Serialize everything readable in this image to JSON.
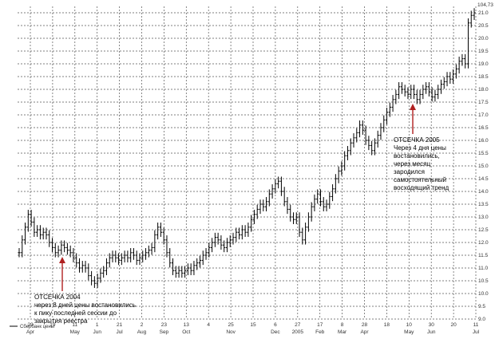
{
  "chart_data": {
    "type": "line",
    "subtype": "candlestick-style bars",
    "title": "",
    "xlabel": "",
    "ylabel": "",
    "ylim": [
      9.0,
      21.25
    ],
    "y_axis_side": "right",
    "y_ticks": [
      9.0,
      9.5,
      10.0,
      10.5,
      11.0,
      11.5,
      12.0,
      12.5,
      13.0,
      13.5,
      14.0,
      14.5,
      15.0,
      15.5,
      16.0,
      16.5,
      17.0,
      17.5,
      18.0,
      18.5,
      19.0,
      19.5,
      20.0,
      20.5,
      21.0
    ],
    "y_top_label": "104,73",
    "grid": true,
    "legend_position": "bottom-left",
    "x_tick_labels": [
      {
        "day": "29",
        "month": "Apr"
      },
      {
        "day": "19",
        "month": ""
      },
      {
        "day": "11",
        "month": "May"
      },
      {
        "day": "1",
        "month": "Jun"
      },
      {
        "day": "21",
        "month": "Jul"
      },
      {
        "day": "2",
        "month": "Aug"
      },
      {
        "day": "23",
        "month": "Sep"
      },
      {
        "day": "13",
        "month": "Oct"
      },
      {
        "day": "4",
        "month": ""
      },
      {
        "day": "25",
        "month": "Nov"
      },
      {
        "day": "15",
        "month": ""
      },
      {
        "day": "6",
        "month": "Dec"
      },
      {
        "day": "27",
        "month": "2005"
      },
      {
        "day": "17",
        "month": "Feb"
      },
      {
        "day": "8",
        "month": "Mar"
      },
      {
        "day": "28",
        "month": "Apr"
      },
      {
        "day": "18",
        "month": ""
      },
      {
        "day": "10",
        "month": "May"
      },
      {
        "day": "30",
        "month": "Jun"
      },
      {
        "day": "20",
        "month": ""
      },
      {
        "day": "11",
        "month": "Jul"
      }
    ],
    "series": [
      {
        "name": "Сбербанк цены",
        "color": "#000000",
        "close": [
          11.6,
          12.1,
          12.6,
          13.1,
          12.8,
          12.4,
          12.5,
          12.3,
          12.4,
          12.3,
          12.0,
          11.8,
          11.6,
          11.7,
          11.9,
          11.8,
          11.7,
          11.6,
          11.4,
          11.2,
          11.0,
          11.1,
          11.0,
          10.7,
          10.5,
          10.4,
          10.6,
          10.8,
          10.9,
          11.2,
          11.4,
          11.5,
          11.4,
          11.3,
          11.4,
          11.5,
          11.4,
          11.6,
          11.5,
          11.3,
          11.4,
          11.5,
          11.6,
          11.7,
          11.8,
          12.3,
          12.6,
          12.4,
          12.1,
          11.6,
          11.2,
          10.9,
          10.8,
          10.9,
          10.8,
          10.9,
          11.0,
          10.9,
          11.1,
          11.2,
          11.3,
          11.5,
          11.6,
          11.8,
          12.0,
          12.2,
          12.1,
          11.9,
          11.8,
          12.0,
          12.1,
          12.2,
          12.4,
          12.3,
          12.5,
          12.4,
          12.6,
          12.9,
          13.1,
          13.3,
          13.5,
          13.4,
          13.6,
          13.9,
          14.1,
          14.3,
          14.4,
          14.0,
          13.6,
          13.3,
          13.0,
          12.9,
          13.0,
          12.4,
          12.1,
          12.6,
          13.0,
          13.4,
          13.7,
          13.9,
          13.6,
          13.4,
          13.5,
          13.8,
          14.1,
          14.5,
          14.8,
          15.0,
          15.4,
          15.6,
          15.9,
          16.1,
          16.3,
          16.6,
          16.4,
          16.0,
          15.8,
          15.6,
          15.9,
          16.2,
          16.5,
          16.8,
          17.1,
          17.3,
          17.6,
          17.8,
          18.1,
          18.0,
          17.9,
          17.8,
          18.0,
          17.8,
          17.6,
          17.8,
          18.0,
          18.1,
          17.9,
          17.7,
          17.8,
          18.0,
          18.2,
          18.3,
          18.5,
          18.4,
          18.6,
          18.8,
          19.1,
          19.2,
          19.0,
          20.6,
          20.9,
          21.0
        ]
      }
    ]
  },
  "annotations": [
    {
      "title": "ОТСЕЧКА 2004",
      "lines": [
        "через 8 дней цены востановились",
        "к пику последней сессии до",
        "закрытия реестра"
      ]
    },
    {
      "title": "ОТСЕЧКА 2005",
      "lines": [
        "Через 4 дня цены",
        "востановились,",
        "через месяц",
        "зародился",
        "самостоятельный",
        "восходящий тренд"
      ]
    }
  ],
  "arrow_color": "#b02020",
  "line_color": "#000000",
  "legend": {
    "label": "Сбербанк цены"
  }
}
